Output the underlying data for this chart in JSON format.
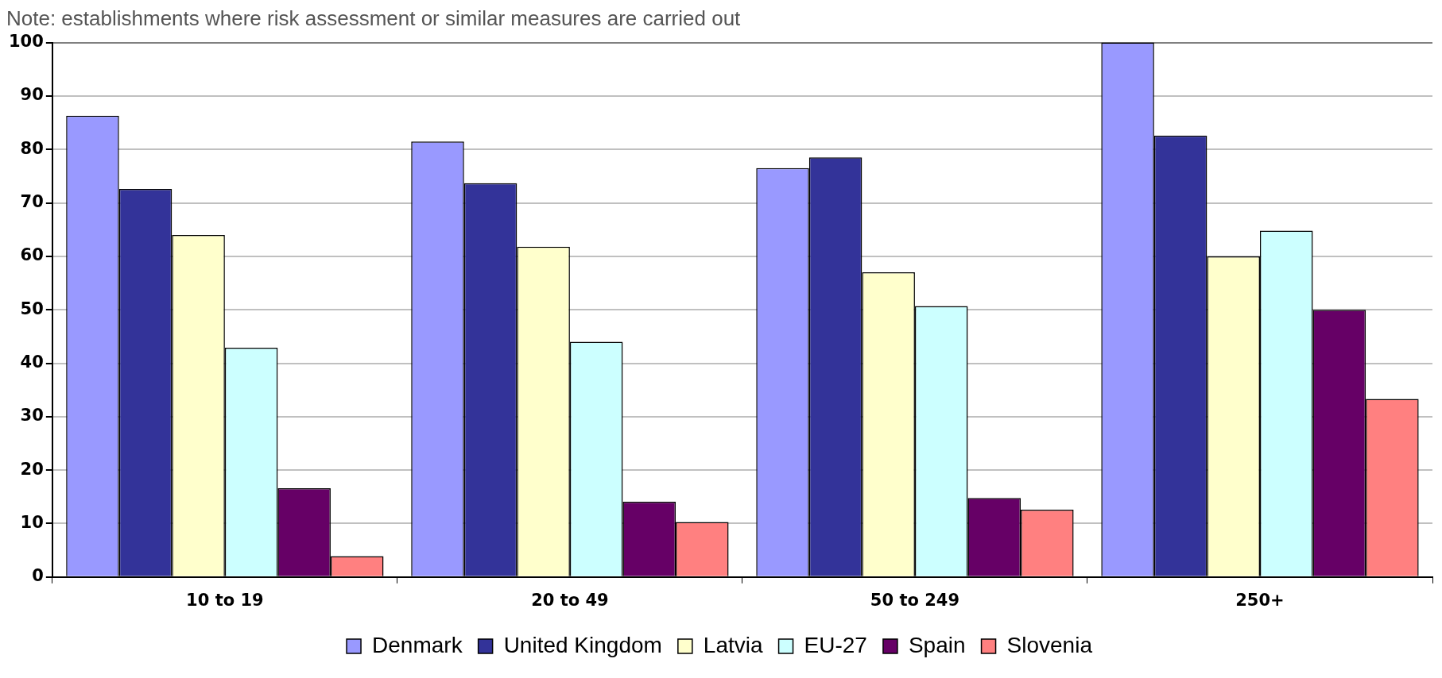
{
  "chart_data": {
    "type": "bar",
    "annotations": [
      "Note: establishments where risk assessment or similar measures are carried out"
    ],
    "categories": [
      "10 to 19",
      "20 to 49",
      "50 to 249",
      "250+"
    ],
    "series": [
      {
        "name": "Denmark",
        "color": "#9999ff",
        "values": [
          86.3,
          81.5,
          76.5,
          100
        ]
      },
      {
        "name": "United Kingdom",
        "color": "#333399",
        "values": [
          72.6,
          73.7,
          78.5,
          82.6
        ]
      },
      {
        "name": "Latvia",
        "color": "#ffffcc",
        "values": [
          64.0,
          61.8,
          57.0,
          60.0
        ]
      },
      {
        "name": "EU-27",
        "color": "#ccffff",
        "values": [
          42.9,
          44.0,
          50.7,
          64.8
        ]
      },
      {
        "name": "Spain",
        "color": "#660066",
        "values": [
          16.6,
          14.1,
          14.8,
          50.0
        ]
      },
      {
        "name": "Slovenia",
        "color": "#ff8080",
        "values": [
          3.9,
          10.3,
          12.6,
          33.3
        ]
      }
    ],
    "ylim": [
      0,
      100
    ],
    "yticks": [
      0,
      10,
      20,
      30,
      40,
      50,
      60,
      70,
      80,
      90,
      100
    ],
    "grid": "y",
    "legend": "bottom"
  }
}
